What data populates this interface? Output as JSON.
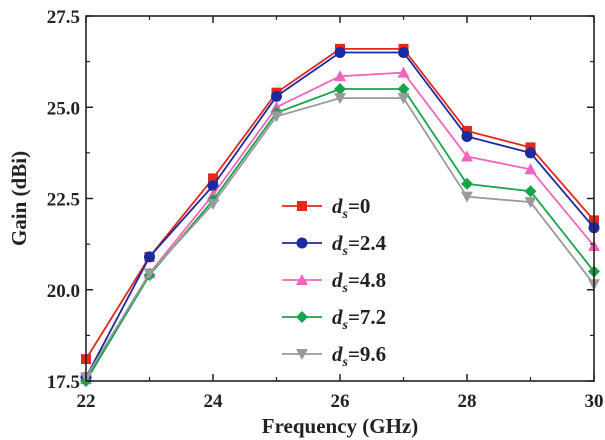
{
  "chart_data": {
    "type": "line",
    "xlabel": "Frequency (GHz)",
    "ylabel": "Gain (dBi)",
    "xlim": [
      22,
      30
    ],
    "ylim": [
      17.5,
      27.5
    ],
    "xticks": [
      "22",
      "24",
      "26",
      "28",
      "30"
    ],
    "yticks": [
      "17.5",
      "20.0",
      "22.5",
      "25.0",
      "27.5"
    ],
    "legend_position": "center-right",
    "x": [
      22,
      23,
      24,
      25,
      26,
      27,
      28,
      29,
      30
    ],
    "series": [
      {
        "name": "d_s=0",
        "var": "d",
        "sub": "s",
        "value_text": "=0",
        "color": "#e8261c",
        "marker": "square",
        "values": [
          18.1,
          20.9,
          23.05,
          25.4,
          26.6,
          26.6,
          24.35,
          23.9,
          21.9
        ]
      },
      {
        "name": "d_s=2.4",
        "var": "d",
        "sub": "s",
        "value_text": "=2.4",
        "color": "#1b2a9e",
        "marker": "circle",
        "values": [
          17.6,
          20.9,
          22.85,
          25.3,
          26.5,
          26.5,
          24.2,
          23.75,
          21.7
        ]
      },
      {
        "name": "d_s=4.8",
        "var": "d",
        "sub": "s",
        "value_text": "=4.8",
        "color": "#ee66bb",
        "marker": "triangle-up",
        "values": [
          17.55,
          20.45,
          22.6,
          25.0,
          25.85,
          25.95,
          23.65,
          23.3,
          21.2
        ]
      },
      {
        "name": "d_s=7.2",
        "var": "d",
        "sub": "s",
        "value_text": "=7.2",
        "color": "#17a34a",
        "marker": "diamond",
        "values": [
          17.5,
          20.4,
          22.45,
          24.85,
          25.5,
          25.5,
          22.9,
          22.7,
          20.5
        ]
      },
      {
        "name": "d_s=9.6",
        "var": "d",
        "sub": "s",
        "value_text": "=9.6",
        "color": "#9a9a9a",
        "marker": "triangle-down",
        "values": [
          17.6,
          20.45,
          22.35,
          24.75,
          25.25,
          25.25,
          22.55,
          22.4,
          20.15
        ]
      }
    ]
  }
}
